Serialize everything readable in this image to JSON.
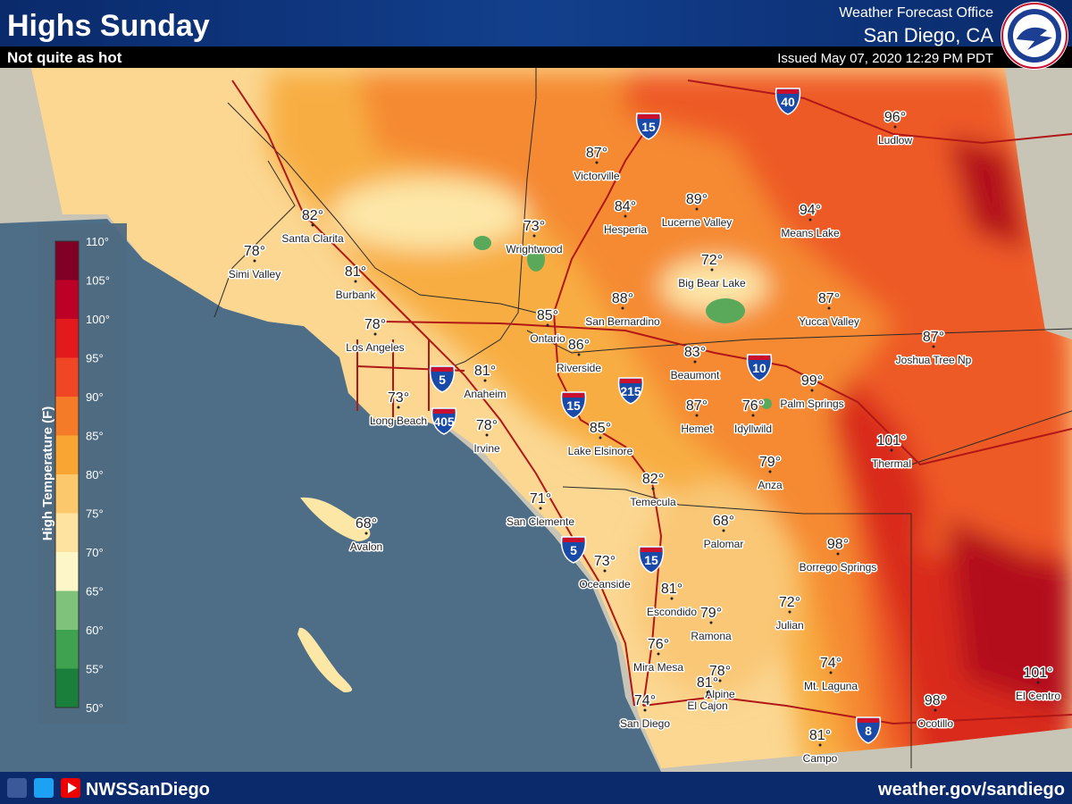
{
  "header": {
    "title": "Highs Sunday",
    "subtitle": "Not quite as hot",
    "office": "Weather Forecast Office",
    "location": "San Diego, CA",
    "issued": "Issued May 07, 2020 12:29 PM PDT"
  },
  "legend": {
    "title": "High Temperature (F)",
    "labels": [
      "110°",
      "105°",
      "100°",
      "95°",
      "90°",
      "85°",
      "80°",
      "75°",
      "70°",
      "65°",
      "60°",
      "55°",
      "50°"
    ]
  },
  "cities": [
    {
      "temp": "96°",
      "name": "Ludlow"
    },
    {
      "temp": "87°",
      "name": "Victorville"
    },
    {
      "temp": "84°",
      "name": "Hesperia"
    },
    {
      "temp": "89°",
      "name": "Lucerne Valley"
    },
    {
      "temp": "94°",
      "name": "Means Lake"
    },
    {
      "temp": "73°",
      "name": "Wrightwood"
    },
    {
      "temp": "82°",
      "name": "Santa Clarita"
    },
    {
      "temp": "78°",
      "name": "Simi Valley"
    },
    {
      "temp": "81°",
      "name": "Burbank"
    },
    {
      "temp": "72°",
      "name": "Big Bear Lake"
    },
    {
      "temp": "88°",
      "name": "San Bernardino"
    },
    {
      "temp": "87°",
      "name": "Yucca Valley"
    },
    {
      "temp": "78°",
      "name": "Los Angeles"
    },
    {
      "temp": "85°",
      "name": "Ontario"
    },
    {
      "temp": "86°",
      "name": "Riverside"
    },
    {
      "temp": "83°",
      "name": "Beaumont"
    },
    {
      "temp": "87°",
      "name": "Joshua Tree Np"
    },
    {
      "temp": "81°",
      "name": "Anaheim"
    },
    {
      "temp": "99°",
      "name": "Palm Springs"
    },
    {
      "temp": "73°",
      "name": "Long Beach"
    },
    {
      "temp": "87°",
      "name": "Hemet"
    },
    {
      "temp": "76°",
      "name": "Idyllwild"
    },
    {
      "temp": "78°",
      "name": "Irvine"
    },
    {
      "temp": "85°",
      "name": "Lake Elsinore"
    },
    {
      "temp": "101°",
      "name": "Thermal"
    },
    {
      "temp": "79°",
      "name": "Anza"
    },
    {
      "temp": "82°",
      "name": "Temecula"
    },
    {
      "temp": "71°",
      "name": "San Clemente"
    },
    {
      "temp": "68°",
      "name": "Avalon"
    },
    {
      "temp": "68°",
      "name": "Palomar"
    },
    {
      "temp": "98°",
      "name": "Borrego Springs"
    },
    {
      "temp": "73°",
      "name": "Oceanside"
    },
    {
      "temp": "81°",
      "name": "Escondido"
    },
    {
      "temp": "79°",
      "name": "Ramona"
    },
    {
      "temp": "72°",
      "name": "Julian"
    },
    {
      "temp": "76°",
      "name": "Mira Mesa"
    },
    {
      "temp": "74°",
      "name": "Mt. Laguna"
    },
    {
      "temp": "78°",
      "name": "Alpine"
    },
    {
      "temp": "81°",
      "name": "El Cajon"
    },
    {
      "temp": "101°",
      "name": "El Centro"
    },
    {
      "temp": "74°",
      "name": "San Diego"
    },
    {
      "temp": "98°",
      "name": "Ocotillo"
    },
    {
      "temp": "81°",
      "name": "Campo"
    }
  ],
  "interstates": [
    "15",
    "40",
    "5",
    "405",
    "215",
    "10",
    "15",
    "5",
    "15",
    "8"
  ],
  "footer": {
    "social": "NWSSanDiego",
    "website": "weather.gov/sandiego"
  }
}
